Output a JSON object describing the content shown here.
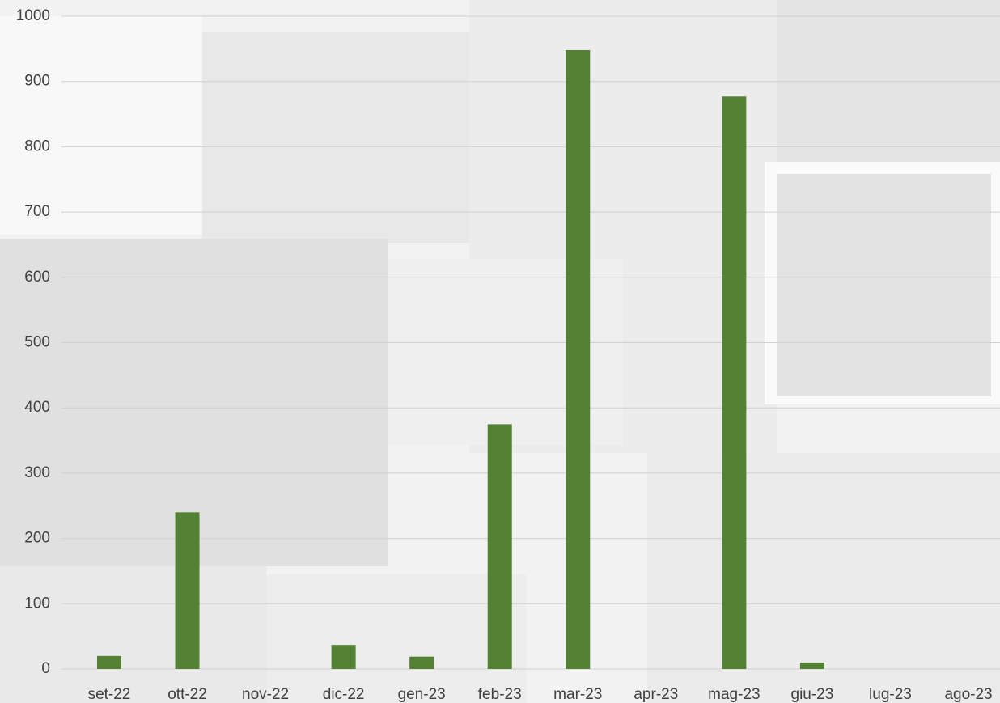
{
  "chart_data": {
    "type": "bar",
    "categories": [
      "set-22",
      "ott-22",
      "nov-22",
      "dic-22",
      "gen-23",
      "feb-23",
      "mar-23",
      "apr-23",
      "mag-23",
      "giu-23",
      "lug-23",
      "ago-23"
    ],
    "values": [
      20,
      240,
      0,
      37,
      19,
      375,
      948,
      0,
      877,
      10,
      0,
      0
    ],
    "color": "#548235",
    "ylim": [
      0,
      1000
    ],
    "yticks": [
      0,
      100,
      200,
      300,
      400,
      500,
      600,
      700,
      800,
      900,
      1000
    ],
    "grid": true
  }
}
